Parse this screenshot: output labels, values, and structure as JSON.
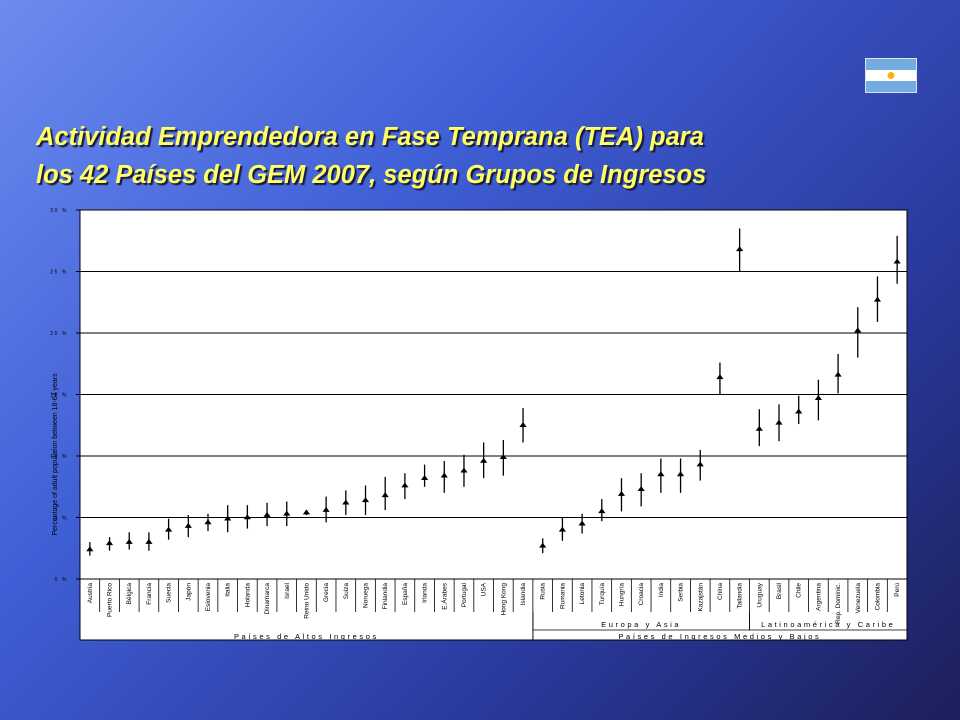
{
  "slide": {
    "title_line1": "Actividad Emprendedora en Fase Temprana (TEA) para",
    "title_line2": "los 42 Países del GEM 2007, según Grupos de Ingresos"
  },
  "colors": {
    "title": "#ffff66",
    "plot_background": "#ffffff",
    "marker": "#000000",
    "flag_blue": "#74acdf",
    "flag_sun": "#f6b40e"
  },
  "chart_data": {
    "type": "scatter",
    "style": "point estimate with 95% confidence interval bars",
    "ylabel": "Percentage of adult population between 18-64 years",
    "ylim": [
      0,
      30
    ],
    "yticks": [
      0,
      5,
      10,
      15,
      20,
      25,
      30
    ],
    "ytick_labels": [
      "0 %",
      "5 %",
      "10 %",
      "15 %",
      "20 %",
      "25 %",
      "30 %"
    ],
    "grid": "horizontal",
    "categories": [
      "Austria",
      "Puerto Rico",
      "Bélgica",
      "Francia",
      "Suecia",
      "Japón",
      "Eslovenia",
      "Italia",
      "Holanda",
      "Dinamarca",
      "Israel",
      "Reino Unido",
      "Grecia",
      "Suiza",
      "Noruega",
      "Finlandia",
      "España",
      "Irlanda",
      "E.Árabes",
      "Portugal",
      "USA",
      "Hong Kong",
      "Islandia",
      "Rusia",
      "Rumania",
      "Letonia",
      "Turquía",
      "Hungría",
      "Croacia",
      "India",
      "Serbia",
      "Kazajstán",
      "China",
      "Tailandia",
      "Uruguay",
      "Brasil",
      "Chile",
      "Argentina",
      "Rep. Dominic.",
      "Venezuela",
      "Colombia",
      "Perú"
    ],
    "values": [
      2.4,
      2.9,
      3.0,
      3.0,
      4.0,
      4.3,
      4.6,
      4.9,
      5.0,
      5.2,
      5.3,
      5.4,
      5.6,
      6.2,
      6.4,
      6.8,
      7.6,
      8.2,
      8.4,
      8.8,
      9.6,
      9.9,
      12.5,
      2.7,
      4.0,
      4.5,
      5.5,
      6.9,
      7.3,
      8.5,
      8.5,
      9.3,
      16.4,
      26.8,
      12.2,
      12.7,
      13.6,
      14.7,
      16.6,
      20.2,
      22.7,
      25.8
    ],
    "ci_low": [
      1.9,
      2.3,
      2.4,
      2.3,
      3.2,
      3.4,
      3.9,
      3.8,
      4.1,
      4.3,
      4.3,
      5.2,
      4.6,
      5.2,
      5.2,
      5.6,
      6.5,
      7.5,
      7.0,
      7.5,
      8.2,
      8.4,
      11.1,
      2.1,
      3.1,
      3.7,
      4.7,
      5.5,
      5.9,
      7.0,
      7.0,
      8.0,
      15.0,
      25.0,
      10.8,
      11.2,
      12.6,
      12.9,
      15.1,
      18.0,
      20.9,
      24.0
    ],
    "ci_high": [
      3.0,
      3.4,
      3.8,
      3.8,
      4.9,
      5.2,
      5.3,
      6.0,
      6.0,
      6.2,
      6.3,
      5.6,
      6.7,
      7.2,
      7.6,
      8.3,
      8.6,
      9.3,
      9.6,
      10.1,
      11.1,
      11.3,
      13.9,
      3.3,
      5.0,
      5.3,
      6.5,
      8.2,
      8.6,
      9.8,
      9.8,
      10.5,
      17.6,
      28.5,
      13.8,
      14.2,
      14.9,
      16.2,
      18.3,
      22.1,
      24.6,
      27.9
    ],
    "groups": [
      {
        "label": "Países de Altos Ingresos",
        "start": 0,
        "end": 22
      },
      {
        "label": "Países de Ingresos Medios y Bajos",
        "start": 23,
        "end": 41
      }
    ],
    "subgroups": [
      {
        "label": "Europa y Asia",
        "start": 23,
        "end": 33
      },
      {
        "label": "Latinoamérica y Caribe",
        "start": 34,
        "end": 41
      }
    ]
  }
}
